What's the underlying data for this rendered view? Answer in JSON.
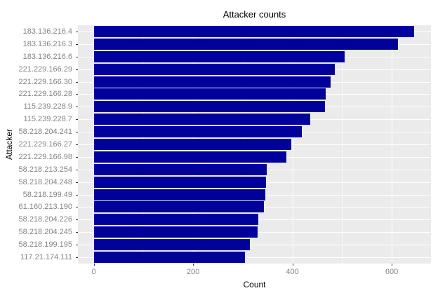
{
  "chart_data": {
    "type": "bar",
    "orientation": "horizontal",
    "title": "Attacker counts",
    "xlabel": "Count",
    "ylabel": "Attacker",
    "categories": [
      "183.136.216.4",
      "183.136.216.3",
      "183.136.216.6",
      "221.229.166.29",
      "221.229.166.30",
      "221.229.166.28",
      "115.239.228.9",
      "115.239.228.7",
      "58.218.204.241",
      "221.229.166.27",
      "221.229.166.98",
      "58.218.213.254",
      "58.218.204.248",
      "58.218.199.49",
      "61.160.213.190",
      "58.218.204.226",
      "58.218.204.245",
      "58.218.199.195",
      "117.21.174.111"
    ],
    "values": [
      645,
      612,
      505,
      486,
      477,
      467,
      465,
      436,
      419,
      398,
      388,
      348,
      347,
      345,
      343,
      332,
      330,
      314,
      305
    ],
    "x_ticks": [
      0,
      200,
      400,
      600
    ],
    "x_minor_ticks": [
      100,
      300,
      500
    ],
    "xlim": [
      -32,
      679
    ],
    "grid": true,
    "legend": false,
    "colors": {
      "bar": "#00009B",
      "panel_bg": "#EBEBEB",
      "grid": "#FFFFFF",
      "axis_text": "#858585",
      "axis_title": "#000000",
      "title_text": "#000000",
      "tick": "#333333"
    }
  }
}
